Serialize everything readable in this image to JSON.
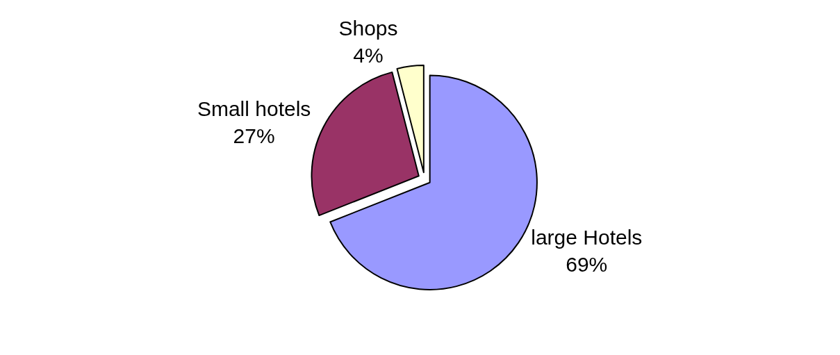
{
  "chart_data": {
    "type": "pie",
    "categories": [
      "large Hotels",
      "Small hotels",
      "Shops"
    ],
    "values": [
      69,
      27,
      4
    ],
    "value_labels": [
      "69%",
      "27%",
      "4%"
    ],
    "colors": [
      "#9999ff",
      "#993366",
      "#ffffcc"
    ],
    "legend": false
  }
}
